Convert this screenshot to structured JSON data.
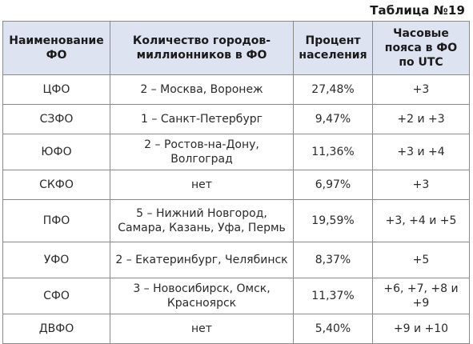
{
  "caption": "Таблица №19",
  "headers": [
    "Наименование ФО",
    "Количество городов-миллионников в ФО",
    "Процент населения",
    "Часовые пояса в ФО по UTC"
  ],
  "rows": [
    {
      "district": "ЦФО",
      "cities": "2 – Москва, Воронеж",
      "percent": "27,48%",
      "utc": "+3"
    },
    {
      "district": "СЗФО",
      "cities": "1 – Санкт-Петербург",
      "percent": "9,47%",
      "utc": "+2 и +3"
    },
    {
      "district": "ЮФО",
      "cities": "2 – Ростов-на-Дону, Волгоград",
      "percent": "11,36%",
      "utc": "+3 и +4"
    },
    {
      "district": "СКФО",
      "cities": "нет",
      "percent": "6,97%",
      "utc": "+3"
    },
    {
      "district": "ПФО",
      "cities": "5 – Нижний Новгород, Самара, Казань, Уфа, Пермь",
      "percent": "19,59%",
      "utc": "+3, +4 и +5"
    },
    {
      "district": "УФО",
      "cities": "2 – Екатеринбург, Челябинск",
      "percent": "8,37%",
      "utc": "+5"
    },
    {
      "district": "СФО",
      "cities": "3 – Новосибирск, Омск, Красноярск",
      "percent": "11,37%",
      "utc": "+6, +7, +8 и +9"
    },
    {
      "district": "ДВФО",
      "cities": "нет",
      "percent": "5,40%",
      "utc": "+9 и +10"
    }
  ]
}
